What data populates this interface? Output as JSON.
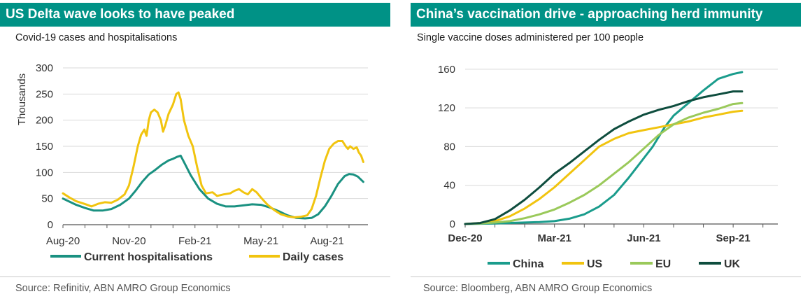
{
  "left": {
    "title": "US Delta wave looks to have peaked",
    "subtitle": "Covid-19 cases and hospitalisations",
    "source": "Source: Refinitiv, ABN AMRO Group Economics"
  },
  "right": {
    "title": "China’s vaccination drive - approaching herd immunity",
    "subtitle": "Single vaccine doses administered per 100 people",
    "source": "Source: Bloomberg, ABN AMRO Group Economics"
  },
  "chart_data": [
    {
      "type": "line",
      "ylabel": "Thousands",
      "ylim": [
        0,
        300
      ],
      "yticks": [
        "0",
        "50",
        "100",
        "150",
        "200",
        "250",
        "300"
      ],
      "xlim": [
        0,
        13.7
      ],
      "xticks": [
        {
          "pos": 0,
          "label": "Aug-20"
        },
        {
          "pos": 3,
          "label": "Nov-20"
        },
        {
          "pos": 6,
          "label": "Feb-21"
        },
        {
          "pos": 9,
          "label": "May-21"
        },
        {
          "pos": 12,
          "label": "Aug-21"
        }
      ],
      "grid": true,
      "legend": "bottom",
      "series": [
        {
          "name": "Current hospitalisations",
          "color": "#1a9181",
          "values": [
            [
              0,
              50
            ],
            [
              0.3,
              44
            ],
            [
              0.6,
              38
            ],
            [
              1.0,
              32
            ],
            [
              1.4,
              27
            ],
            [
              1.8,
              27
            ],
            [
              2.2,
              30
            ],
            [
              2.6,
              38
            ],
            [
              3.0,
              50
            ],
            [
              3.3,
              65
            ],
            [
              3.6,
              82
            ],
            [
              3.9,
              96
            ],
            [
              4.2,
              105
            ],
            [
              4.5,
              115
            ],
            [
              4.8,
              123
            ],
            [
              5.0,
              126
            ],
            [
              5.2,
              130
            ],
            [
              5.35,
              132
            ],
            [
              5.5,
              120
            ],
            [
              5.8,
              95
            ],
            [
              6.2,
              68
            ],
            [
              6.6,
              50
            ],
            [
              7.0,
              40
            ],
            [
              7.4,
              35
            ],
            [
              7.8,
              35
            ],
            [
              8.2,
              37
            ],
            [
              8.6,
              39
            ],
            [
              9.0,
              38
            ],
            [
              9.4,
              33
            ],
            [
              9.8,
              26
            ],
            [
              10.2,
              18
            ],
            [
              10.6,
              13
            ],
            [
              11.0,
              12
            ],
            [
              11.3,
              13
            ],
            [
              11.6,
              20
            ],
            [
              11.9,
              35
            ],
            [
              12.2,
              55
            ],
            [
              12.5,
              78
            ],
            [
              12.8,
              93
            ],
            [
              13.0,
              97
            ],
            [
              13.2,
              96
            ],
            [
              13.4,
              92
            ],
            [
              13.5,
              88
            ],
            [
              13.65,
              82
            ]
          ]
        },
        {
          "name": "Daily cases",
          "color": "#f1c40f",
          "values": [
            [
              0,
              60
            ],
            [
              0.3,
              52
            ],
            [
              0.6,
              45
            ],
            [
              0.9,
              41
            ],
            [
              1.1,
              38
            ],
            [
              1.3,
              35
            ],
            [
              1.6,
              40
            ],
            [
              1.9,
              43
            ],
            [
              2.2,
              42
            ],
            [
              2.5,
              48
            ],
            [
              2.8,
              58
            ],
            [
              3.0,
              75
            ],
            [
              3.2,
              110
            ],
            [
              3.4,
              150
            ],
            [
              3.55,
              172
            ],
            [
              3.7,
              182
            ],
            [
              3.8,
              170
            ],
            [
              3.9,
              200
            ],
            [
              4.0,
              215
            ],
            [
              4.15,
              220
            ],
            [
              4.3,
              215
            ],
            [
              4.45,
              200
            ],
            [
              4.55,
              178
            ],
            [
              4.65,
              190
            ],
            [
              4.8,
              212
            ],
            [
              5.0,
              230
            ],
            [
              5.15,
              250
            ],
            [
              5.25,
              253
            ],
            [
              5.35,
              240
            ],
            [
              5.5,
              200
            ],
            [
              5.7,
              170
            ],
            [
              5.9,
              150
            ],
            [
              6.1,
              110
            ],
            [
              6.3,
              75
            ],
            [
              6.5,
              60
            ],
            [
              6.8,
              62
            ],
            [
              7.0,
              55
            ],
            [
              7.3,
              58
            ],
            [
              7.6,
              60
            ],
            [
              7.8,
              65
            ],
            [
              8.0,
              68
            ],
            [
              8.2,
              62
            ],
            [
              8.4,
              58
            ],
            [
              8.6,
              68
            ],
            [
              8.8,
              62
            ],
            [
              9.0,
              52
            ],
            [
              9.3,
              38
            ],
            [
              9.6,
              28
            ],
            [
              9.9,
              20
            ],
            [
              10.2,
              16
            ],
            [
              10.5,
              14
            ],
            [
              10.8,
              15
            ],
            [
              11.1,
              18
            ],
            [
              11.3,
              30
            ],
            [
              11.5,
              55
            ],
            [
              11.7,
              90
            ],
            [
              11.9,
              122
            ],
            [
              12.1,
              145
            ],
            [
              12.3,
              155
            ],
            [
              12.5,
              160
            ],
            [
              12.7,
              160
            ],
            [
              12.85,
              150
            ],
            [
              12.95,
              145
            ],
            [
              13.05,
              150
            ],
            [
              13.2,
              145
            ],
            [
              13.35,
              148
            ],
            [
              13.45,
              138
            ],
            [
              13.55,
              132
            ],
            [
              13.65,
              120
            ]
          ]
        }
      ]
    },
    {
      "type": "line",
      "ylim": [
        0,
        170
      ],
      "yticks": [
        "0",
        "40",
        "80",
        "120",
        "160"
      ],
      "xlim": [
        0,
        10.5
      ],
      "xticks": [
        {
          "pos": 0,
          "label": "Dec-20"
        },
        {
          "pos": 3,
          "label": "Mar-21"
        },
        {
          "pos": 6,
          "label": "Jun-21"
        },
        {
          "pos": 9,
          "label": "Sep-21"
        }
      ],
      "grid": true,
      "legend": "bottom",
      "series": [
        {
          "name": "China",
          "color": "#1a9c8c",
          "values": [
            [
              0,
              0
            ],
            [
              1,
              0.5
            ],
            [
              2,
              1.5
            ],
            [
              2.5,
              2
            ],
            [
              3,
              3
            ],
            [
              3.5,
              5.5
            ],
            [
              4,
              10
            ],
            [
              4.5,
              18
            ],
            [
              5,
              30
            ],
            [
              5.5,
              48
            ],
            [
              5.8,
              60
            ],
            [
              6,
              68
            ],
            [
              6.3,
              80
            ],
            [
              6.7,
              100
            ],
            [
              7,
              112
            ],
            [
              7.5,
              125
            ],
            [
              8,
              138
            ],
            [
              8.5,
              150
            ],
            [
              9,
              155
            ],
            [
              9.3,
              157
            ]
          ]
        },
        {
          "name": "US",
          "color": "#f1c40f",
          "values": [
            [
              0,
              0
            ],
            [
              0.5,
              1
            ],
            [
              1,
              3
            ],
            [
              1.5,
              8
            ],
            [
              2,
              16
            ],
            [
              2.5,
              26
            ],
            [
              3,
              38
            ],
            [
              3.5,
              52
            ],
            [
              4,
              66
            ],
            [
              4.5,
              80
            ],
            [
              5,
              88
            ],
            [
              5.5,
              94
            ],
            [
              6,
              97
            ],
            [
              6.5,
              100
            ],
            [
              7,
              103
            ],
            [
              7.5,
              106
            ],
            [
              8,
              110
            ],
            [
              8.5,
              113
            ],
            [
              9,
              116
            ],
            [
              9.3,
              117
            ]
          ]
        },
        {
          "name": "EU",
          "color": "#9ac95a",
          "values": [
            [
              0,
              0
            ],
            [
              0.5,
              0.5
            ],
            [
              1,
              1.5
            ],
            [
              1.5,
              3
            ],
            [
              2,
              6
            ],
            [
              2.5,
              10
            ],
            [
              3,
              15
            ],
            [
              3.5,
              22
            ],
            [
              4,
              30
            ],
            [
              4.5,
              40
            ],
            [
              5,
              52
            ],
            [
              5.5,
              64
            ],
            [
              6,
              78
            ],
            [
              6.5,
              92
            ],
            [
              7,
              103
            ],
            [
              7.5,
              110
            ],
            [
              8,
              115
            ],
            [
              8.5,
              119
            ],
            [
              9,
              124
            ],
            [
              9.3,
              125
            ]
          ]
        },
        {
          "name": "UK",
          "color": "#0e4d3e",
          "values": [
            [
              0,
              0
            ],
            [
              0.5,
              1
            ],
            [
              1,
              5
            ],
            [
              1.5,
              14
            ],
            [
              2,
              25
            ],
            [
              2.5,
              38
            ],
            [
              3,
              52
            ],
            [
              3.5,
              63
            ],
            [
              4,
              75
            ],
            [
              4.5,
              87
            ],
            [
              5,
              98
            ],
            [
              5.5,
              106
            ],
            [
              6,
              113
            ],
            [
              6.5,
              118
            ],
            [
              7,
              122
            ],
            [
              7.5,
              127
            ],
            [
              8,
              131
            ],
            [
              8.5,
              134
            ],
            [
              9,
              137
            ],
            [
              9.3,
              137
            ]
          ]
        }
      ]
    }
  ]
}
